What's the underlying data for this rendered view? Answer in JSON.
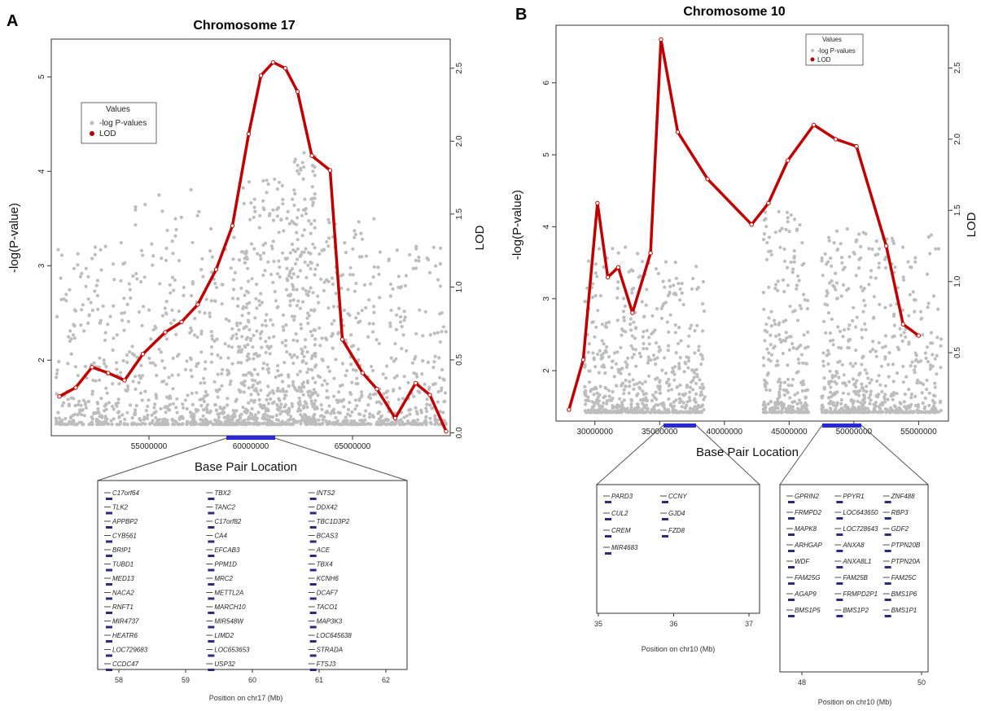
{
  "panels": [
    {
      "label": "A",
      "title": "Chromosome 17",
      "xlabel": "Base Pair Location",
      "ylabel_left": "-log(P-value)",
      "ylabel_right": "LOD",
      "legend": {
        "title": "Values",
        "items": [
          "-log P-values",
          "LOD"
        ]
      },
      "x_ticks": [
        "55000000",
        "60000000",
        "65000000"
      ],
      "y_ticks_left": [
        "2",
        "3",
        "4",
        "5"
      ],
      "y_ticks_right": [
        "0.0",
        "0.5",
        "1.0",
        "1.5",
        "2.0",
        "2.5"
      ],
      "zoom": {
        "xlabel": "Position on chr17 (Mb)",
        "x_ticks": [
          "58",
          "59",
          "60",
          "61",
          "62"
        ],
        "genes": [
          "C17orf64",
          "TBX2",
          "INTS2",
          "TLK2",
          "TANC2",
          "DDX42",
          "APPBP2",
          "C17orf82",
          "TBC1D3P2",
          "CYB561",
          "CA4",
          "BCAS3",
          "BRIP1",
          "EFCAB3",
          "ACE",
          "TUBD1",
          "PPM1D",
          "TBX4",
          "MED13",
          "MRC2",
          "KCNH6",
          "NACA2",
          "METTL2A",
          "DCAF7",
          "RNFT1",
          "MARCH10",
          "TACO1",
          "MIR4737",
          "MIR548W",
          "MAP3K3",
          "HEATR6",
          "LIMD2",
          "LOC645638",
          "LOC729683",
          "LOC653653",
          "STRADA",
          "CCDC47",
          "USP32",
          "FTSJ3"
        ]
      }
    },
    {
      "label": "B",
      "title": "Chromosome 10",
      "xlabel": "Base Pair Location",
      "ylabel_left": "-log(P-value)",
      "ylabel_right": "LOD",
      "legend": {
        "title": "Values",
        "items": [
          "-log P-values",
          "LOD"
        ]
      },
      "x_ticks": [
        "30000000",
        "35000000",
        "40000000",
        "45000000",
        "50000000",
        "55000000"
      ],
      "y_ticks_left": [
        "2",
        "3",
        "4",
        "5",
        "6"
      ],
      "y_ticks_right": [
        "0.5",
        "1.0",
        "1.5",
        "2.0",
        "2.5"
      ],
      "zoom1": {
        "xlabel": "Position on chr10 (Mb)",
        "x_ticks": [
          "35",
          "36",
          "37"
        ],
        "genes": [
          "PARD3",
          "CCNY",
          "CUL2",
          "GJD4",
          "CREM",
          "FZD8",
          "MIR4683"
        ]
      },
      "zoom2": {
        "xlabel": "Position on chr10 (Mb)",
        "x_ticks": [
          "48",
          "50"
        ],
        "genes": [
          "GPRIN2",
          "PPYR1",
          "ZNF488",
          "FRMPD2",
          "LOC643650",
          "RBP3",
          "MAPK8",
          "LOC728643",
          "GDF2",
          "ARHGAP",
          "ANXA8",
          "PTPN20B",
          "WDF",
          "ANXA8L1",
          "PTPN20A",
          "FAM25G",
          "FAM25B",
          "FAM25C",
          "AGAP9",
          "FRMPD2P1",
          "BMS1P6",
          "BMS1P5",
          "BMS1P2",
          "BMS1P1"
        ]
      }
    }
  ],
  "chart_data": [
    {
      "type": "scatter",
      "title": "Chromosome 17",
      "xlabel": "Base Pair Location",
      "ylabel": "-log(P-value)",
      "y2label": "LOD",
      "xlim": [
        50200000,
        69800000
      ],
      "ylim": [
        1.2,
        5.4
      ],
      "y2lim": [
        -0.02,
        2.7
      ],
      "series": [
        {
          "name": "LOD",
          "x": [
            50600000,
            51400000,
            52200000,
            53000000,
            53800000,
            54700000,
            55800000,
            56600000,
            57400000,
            58300000,
            59100000,
            59900000,
            60500000,
            61100000,
            61700000,
            62300000,
            63000000,
            63900000,
            64500000,
            65500000,
            66200000,
            67100000,
            68100000,
            68800000,
            69600000
          ],
          "y": [
            0.25,
            0.31,
            0.45,
            0.41,
            0.36,
            0.54,
            0.69,
            0.76,
            0.88,
            1.12,
            1.42,
            2.05,
            2.45,
            2.54,
            2.5,
            2.34,
            1.9,
            1.8,
            0.64,
            0.41,
            0.3,
            0.1,
            0.34,
            0.26,
            0.01
          ]
        },
        {
          "name": "-log P-values",
          "x": [],
          "y": []
        }
      ]
    },
    {
      "type": "scatter",
      "title": "Chromosome 10",
      "xlabel": "Base Pair Location",
      "ylabel": "-log(P-value)",
      "y2label": "LOD",
      "xlim": [
        27000000,
        57300000
      ],
      "ylim": [
        1.3,
        6.8
      ],
      "y2lim": [
        0.02,
        2.8
      ],
      "series": [
        {
          "name": "LOD",
          "x": [
            28000000,
            29100000,
            30200000,
            31000000,
            31800000,
            32900000,
            34300000,
            35100000,
            36400000,
            38700000,
            42100000,
            43400000,
            44900000,
            46900000,
            48600000,
            50200000,
            52500000,
            53800000,
            55000000
          ],
          "y": [
            0.1,
            0.45,
            1.55,
            1.03,
            1.1,
            0.78,
            1.2,
            2.7,
            2.05,
            1.72,
            1.4,
            1.55,
            1.85,
            2.1,
            2.0,
            1.95,
            1.25,
            0.7,
            0.62
          ]
        },
        {
          "name": "-log P-values",
          "x": [],
          "y": []
        }
      ]
    }
  ]
}
